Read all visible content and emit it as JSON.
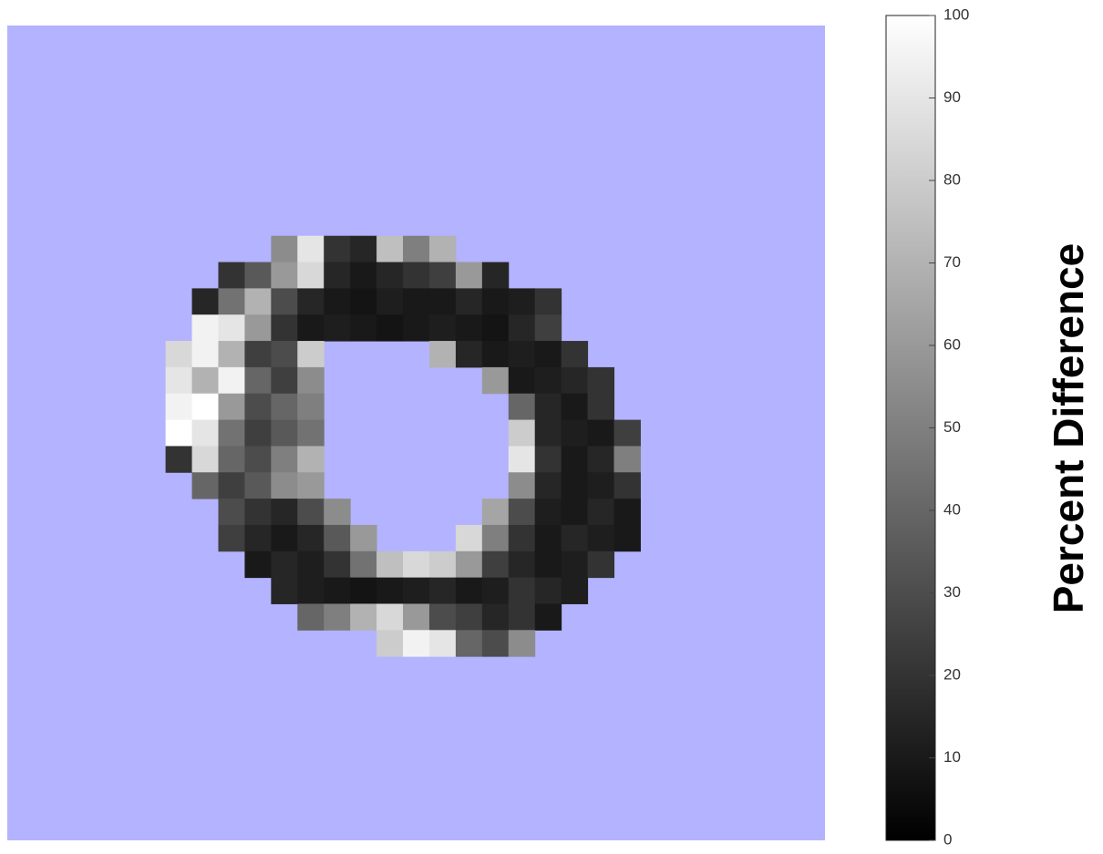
{
  "chart_data": {
    "type": "heatmap",
    "colormap": "gray",
    "background": "#b3b3ff",
    "colorbar_label": "Percent Difference",
    "clim": [
      0,
      100
    ],
    "cticks": [
      0,
      10,
      20,
      30,
      40,
      50,
      60,
      70,
      80,
      90,
      100
    ],
    "values": [
      [
        null,
        null,
        null,
        null,
        null,
        null,
        null,
        null,
        null,
        null,
        null,
        null,
        null,
        null,
        null,
        null,
        null,
        null,
        null,
        null,
        null,
        null,
        null,
        null,
        null,
        null,
        null,
        null,
        null,
        null,
        null
      ],
      [
        null,
        null,
        null,
        null,
        null,
        null,
        null,
        null,
        null,
        null,
        null,
        null,
        null,
        null,
        null,
        null,
        null,
        null,
        null,
        null,
        null,
        null,
        null,
        null,
        null,
        null,
        null,
        null,
        null,
        null,
        null
      ],
      [
        null,
        null,
        null,
        null,
        null,
        null,
        null,
        null,
        null,
        null,
        null,
        null,
        null,
        null,
        null,
        null,
        null,
        null,
        null,
        null,
        null,
        null,
        null,
        null,
        null,
        null,
        null,
        null,
        null,
        null,
        null
      ],
      [
        null,
        null,
        null,
        null,
        null,
        null,
        null,
        null,
        null,
        null,
        null,
        null,
        null,
        null,
        null,
        null,
        null,
        null,
        null,
        null,
        null,
        null,
        null,
        null,
        null,
        null,
        null,
        null,
        null,
        null,
        null
      ],
      [
        null,
        null,
        null,
        null,
        null,
        null,
        null,
        null,
        null,
        null,
        null,
        null,
        null,
        null,
        null,
        null,
        null,
        null,
        null,
        null,
        null,
        null,
        null,
        null,
        null,
        null,
        null,
        null,
        null,
        null,
        null
      ],
      [
        null,
        null,
        null,
        null,
        null,
        null,
        null,
        null,
        null,
        null,
        null,
        null,
        null,
        null,
        null,
        null,
        null,
        null,
        null,
        null,
        null,
        null,
        null,
        null,
        null,
        null,
        null,
        null,
        null,
        null,
        null
      ],
      [
        null,
        null,
        null,
        null,
        null,
        null,
        null,
        null,
        null,
        null,
        null,
        null,
        null,
        null,
        null,
        null,
        null,
        null,
        null,
        null,
        null,
        null,
        null,
        null,
        null,
        null,
        null,
        null,
        null,
        null,
        null
      ],
      [
        null,
        null,
        null,
        null,
        null,
        null,
        null,
        null,
        null,
        null,
        null,
        null,
        null,
        null,
        null,
        null,
        null,
        null,
        null,
        null,
        null,
        null,
        null,
        null,
        null,
        null,
        null,
        null,
        null,
        null,
        null
      ],
      [
        null,
        null,
        null,
        null,
        null,
        null,
        null,
        null,
        null,
        null,
        55,
        90,
        20,
        15,
        75,
        50,
        70,
        null,
        null,
        null,
        null,
        null,
        null,
        null,
        null,
        null,
        null,
        null,
        null,
        null,
        null
      ],
      [
        null,
        null,
        null,
        null,
        null,
        null,
        null,
        null,
        20,
        35,
        60,
        85,
        15,
        10,
        15,
        20,
        25,
        60,
        15,
        null,
        null,
        null,
        null,
        null,
        null,
        null,
        null,
        null,
        null,
        null,
        null
      ],
      [
        null,
        null,
        null,
        null,
        null,
        null,
        null,
        15,
        45,
        70,
        30,
        15,
        10,
        8,
        12,
        10,
        10,
        15,
        10,
        12,
        20,
        null,
        null,
        null,
        null,
        null,
        null,
        null,
        null,
        null,
        null
      ],
      [
        null,
        null,
        null,
        null,
        null,
        null,
        null,
        95,
        90,
        60,
        20,
        10,
        12,
        10,
        8,
        10,
        12,
        10,
        8,
        15,
        25,
        null,
        null,
        null,
        null,
        null,
        null,
        null,
        null,
        null,
        null
      ],
      [
        null,
        null,
        null,
        null,
        null,
        null,
        85,
        95,
        70,
        25,
        30,
        80,
        null,
        null,
        null,
        null,
        70,
        15,
        10,
        12,
        10,
        20,
        null,
        null,
        null,
        null,
        null,
        null,
        null,
        null,
        null
      ],
      [
        null,
        null,
        null,
        null,
        null,
        null,
        90,
        70,
        95,
        40,
        25,
        55,
        null,
        null,
        null,
        null,
        null,
        null,
        60,
        10,
        12,
        15,
        20,
        null,
        null,
        null,
        null,
        null,
        null,
        null,
        null
      ],
      [
        null,
        null,
        null,
        null,
        null,
        null,
        95,
        100,
        60,
        30,
        40,
        50,
        null,
        null,
        null,
        null,
        null,
        null,
        null,
        40,
        15,
        10,
        20,
        null,
        null,
        null,
        null,
        null,
        null,
        null,
        null
      ],
      [
        null,
        null,
        null,
        null,
        null,
        null,
        100,
        90,
        45,
        25,
        35,
        45,
        null,
        null,
        null,
        null,
        null,
        null,
        null,
        80,
        15,
        12,
        10,
        25,
        null,
        null,
        null,
        null,
        null,
        null,
        null
      ],
      [
        null,
        null,
        null,
        null,
        null,
        null,
        20,
        85,
        40,
        30,
        50,
        70,
        null,
        null,
        null,
        null,
        null,
        null,
        null,
        90,
        20,
        10,
        15,
        50,
        null,
        null,
        null,
        null,
        null,
        null,
        null
      ],
      [
        null,
        null,
        null,
        null,
        null,
        null,
        null,
        40,
        25,
        35,
        55,
        60,
        null,
        null,
        null,
        null,
        null,
        null,
        null,
        55,
        15,
        10,
        12,
        20,
        null,
        null,
        null,
        null,
        null,
        null,
        null
      ],
      [
        null,
        null,
        null,
        null,
        null,
        null,
        null,
        null,
        30,
        20,
        15,
        30,
        55,
        null,
        null,
        null,
        null,
        null,
        65,
        30,
        12,
        10,
        15,
        10,
        null,
        null,
        null,
        null,
        null,
        null,
        null
      ],
      [
        null,
        null,
        null,
        null,
        null,
        null,
        null,
        null,
        25,
        15,
        10,
        15,
        35,
        60,
        null,
        null,
        null,
        85,
        50,
        20,
        10,
        15,
        12,
        10,
        null,
        null,
        null,
        null,
        null,
        null,
        null
      ],
      [
        null,
        null,
        null,
        null,
        null,
        null,
        null,
        null,
        null,
        10,
        15,
        12,
        20,
        45,
        75,
        85,
        80,
        60,
        25,
        15,
        10,
        12,
        20,
        null,
        null,
        null,
        null,
        null,
        null,
        null,
        null
      ],
      [
        null,
        null,
        null,
        null,
        null,
        null,
        null,
        null,
        null,
        null,
        15,
        12,
        10,
        8,
        10,
        12,
        15,
        10,
        12,
        20,
        15,
        12,
        null,
        null,
        null,
        null,
        null,
        null,
        null,
        null,
        null
      ],
      [
        null,
        null,
        null,
        null,
        null,
        null,
        null,
        null,
        null,
        null,
        null,
        40,
        50,
        70,
        85,
        60,
        30,
        25,
        15,
        20,
        10,
        null,
        null,
        null,
        null,
        null,
        null,
        null,
        null,
        null,
        null
      ],
      [
        null,
        null,
        null,
        null,
        null,
        null,
        null,
        null,
        null,
        null,
        null,
        null,
        null,
        null,
        80,
        95,
        90,
        40,
        30,
        55,
        null,
        null,
        null,
        null,
        null,
        null,
        null,
        null,
        null,
        null,
        null
      ],
      [
        null,
        null,
        null,
        null,
        null,
        null,
        null,
        null,
        null,
        null,
        null,
        null,
        null,
        null,
        null,
        null,
        null,
        null,
        null,
        null,
        null,
        null,
        null,
        null,
        null,
        null,
        null,
        null,
        null,
        null,
        null
      ],
      [
        null,
        null,
        null,
        null,
        null,
        null,
        null,
        null,
        null,
        null,
        null,
        null,
        null,
        null,
        null,
        null,
        null,
        null,
        null,
        null,
        null,
        null,
        null,
        null,
        null,
        null,
        null,
        null,
        null,
        null,
        null
      ],
      [
        null,
        null,
        null,
        null,
        null,
        null,
        null,
        null,
        null,
        null,
        null,
        null,
        null,
        null,
        null,
        null,
        null,
        null,
        null,
        null,
        null,
        null,
        null,
        null,
        null,
        null,
        null,
        null,
        null,
        null,
        null
      ],
      [
        null,
        null,
        null,
        null,
        null,
        null,
        null,
        null,
        null,
        null,
        null,
        null,
        null,
        null,
        null,
        null,
        null,
        null,
        null,
        null,
        null,
        null,
        null,
        null,
        null,
        null,
        null,
        null,
        null,
        null,
        null
      ],
      [
        null,
        null,
        null,
        null,
        null,
        null,
        null,
        null,
        null,
        null,
        null,
        null,
        null,
        null,
        null,
        null,
        null,
        null,
        null,
        null,
        null,
        null,
        null,
        null,
        null,
        null,
        null,
        null,
        null,
        null,
        null
      ],
      [
        null,
        null,
        null,
        null,
        null,
        null,
        null,
        null,
        null,
        null,
        null,
        null,
        null,
        null,
        null,
        null,
        null,
        null,
        null,
        null,
        null,
        null,
        null,
        null,
        null,
        null,
        null,
        null,
        null,
        null,
        null
      ],
      [
        null,
        null,
        null,
        null,
        null,
        null,
        null,
        null,
        null,
        null,
        null,
        null,
        null,
        null,
        null,
        null,
        null,
        null,
        null,
        null,
        null,
        null,
        null,
        null,
        null,
        null,
        null,
        null,
        null,
        null,
        null
      ]
    ]
  }
}
